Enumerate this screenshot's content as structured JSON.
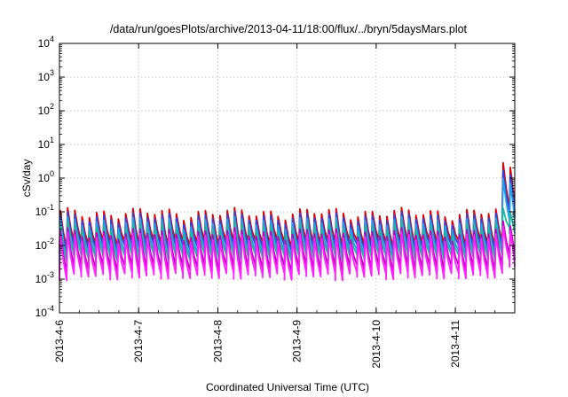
{
  "chart_data": {
    "type": "line",
    "title": "/data/run/goesPlots/archive/2013-04-11/18:00/flux/../bryn/5daysMars.plot",
    "xlabel": "Coordinated Universal Time (UTC)",
    "ylabel": "cSv/day",
    "x_scale": "date",
    "y_scale": "log",
    "xlim": [
      "2013-04-06",
      "2013-04-11T18:00"
    ],
    "ylim": [
      0.0001,
      10000
    ],
    "x_ticks": [
      "2013-4-6",
      "2013-4-7",
      "2013-4-8",
      "2013-4-9",
      "2013-4-10",
      "2013-4-11"
    ],
    "y_ticks": [
      {
        "base": "10",
        "exp": "-4"
      },
      {
        "base": "10",
        "exp": "-3"
      },
      {
        "base": "10",
        "exp": "-2"
      },
      {
        "base": "10",
        "exp": "-1"
      },
      {
        "base": "10",
        "exp": "0"
      },
      {
        "base": "10",
        "exp": "1"
      },
      {
        "base": "10",
        "exp": "2"
      },
      {
        "base": "10",
        "exp": "3"
      },
      {
        "base": "10",
        "exp": "4"
      }
    ],
    "grid": true,
    "legend": "none",
    "pattern": {
      "period_hours": 2.2,
      "event_start": "2013-04-11T13:00"
    },
    "series": [
      {
        "color": "#dd0000",
        "peak": 0.12,
        "trough": 0.012,
        "event_peak": 2.7,
        "event_trough": 0.12
      },
      {
        "color": "#3344dd",
        "peak": 0.09,
        "trough": 0.009,
        "event_peak": 1.6,
        "event_trough": 0.09
      },
      {
        "color": "#22a0e8",
        "peak": 0.065,
        "trough": 0.006,
        "event_peak": 0.9,
        "event_trough": 0.05
      },
      {
        "color": "#20b8a0",
        "peak": 0.045,
        "trough": 0.0045,
        "event_peak": 0.12,
        "event_trough": 0.03
      },
      {
        "color": "#c000c0",
        "peak": 0.03,
        "trough": 0.0022,
        "event_peak": 0.05,
        "event_trough": 0.005
      },
      {
        "color": "#ff20ff",
        "peak": 0.022,
        "trough": 0.0013,
        "event_peak": 0.035,
        "event_trough": 0.003
      }
    ]
  }
}
